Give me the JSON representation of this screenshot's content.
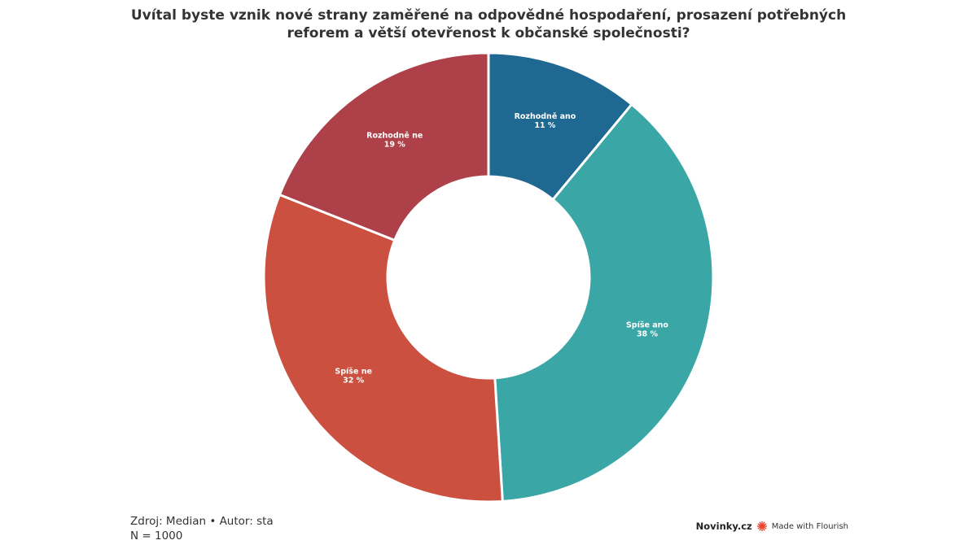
{
  "title": "Uvítal byste vznik nové strany zaměřené na odpovědné hospodaření, prosazení potřebných reforem a větší otevřenost k občanské společnosti?",
  "footer": {
    "source": "Zdroj: Median • Autor: sta",
    "sample": "N = 1000"
  },
  "branding": {
    "publisher": "Novinky.cz",
    "made_with": "Made with Flourish",
    "flourish_icon": "flourish-burst-icon",
    "flourish_color": "#e8452f"
  },
  "chart_data": {
    "type": "pie",
    "donut": true,
    "start_angle_deg": 0,
    "direction": "clockwise",
    "slices": [
      {
        "label": "Rozhodně ano",
        "value": 11,
        "display": "11 %",
        "color": "#1f6892"
      },
      {
        "label": "Spíše ano",
        "value": 38,
        "display": "38 %",
        "color": "#3aa6a5"
      },
      {
        "label": "Spíše ne",
        "value": 32,
        "display": "32 %",
        "color": "#cb503f"
      },
      {
        "label": "Rozhodně ne",
        "value": 19,
        "display": "19 %",
        "color": "#ad4049"
      }
    ]
  }
}
